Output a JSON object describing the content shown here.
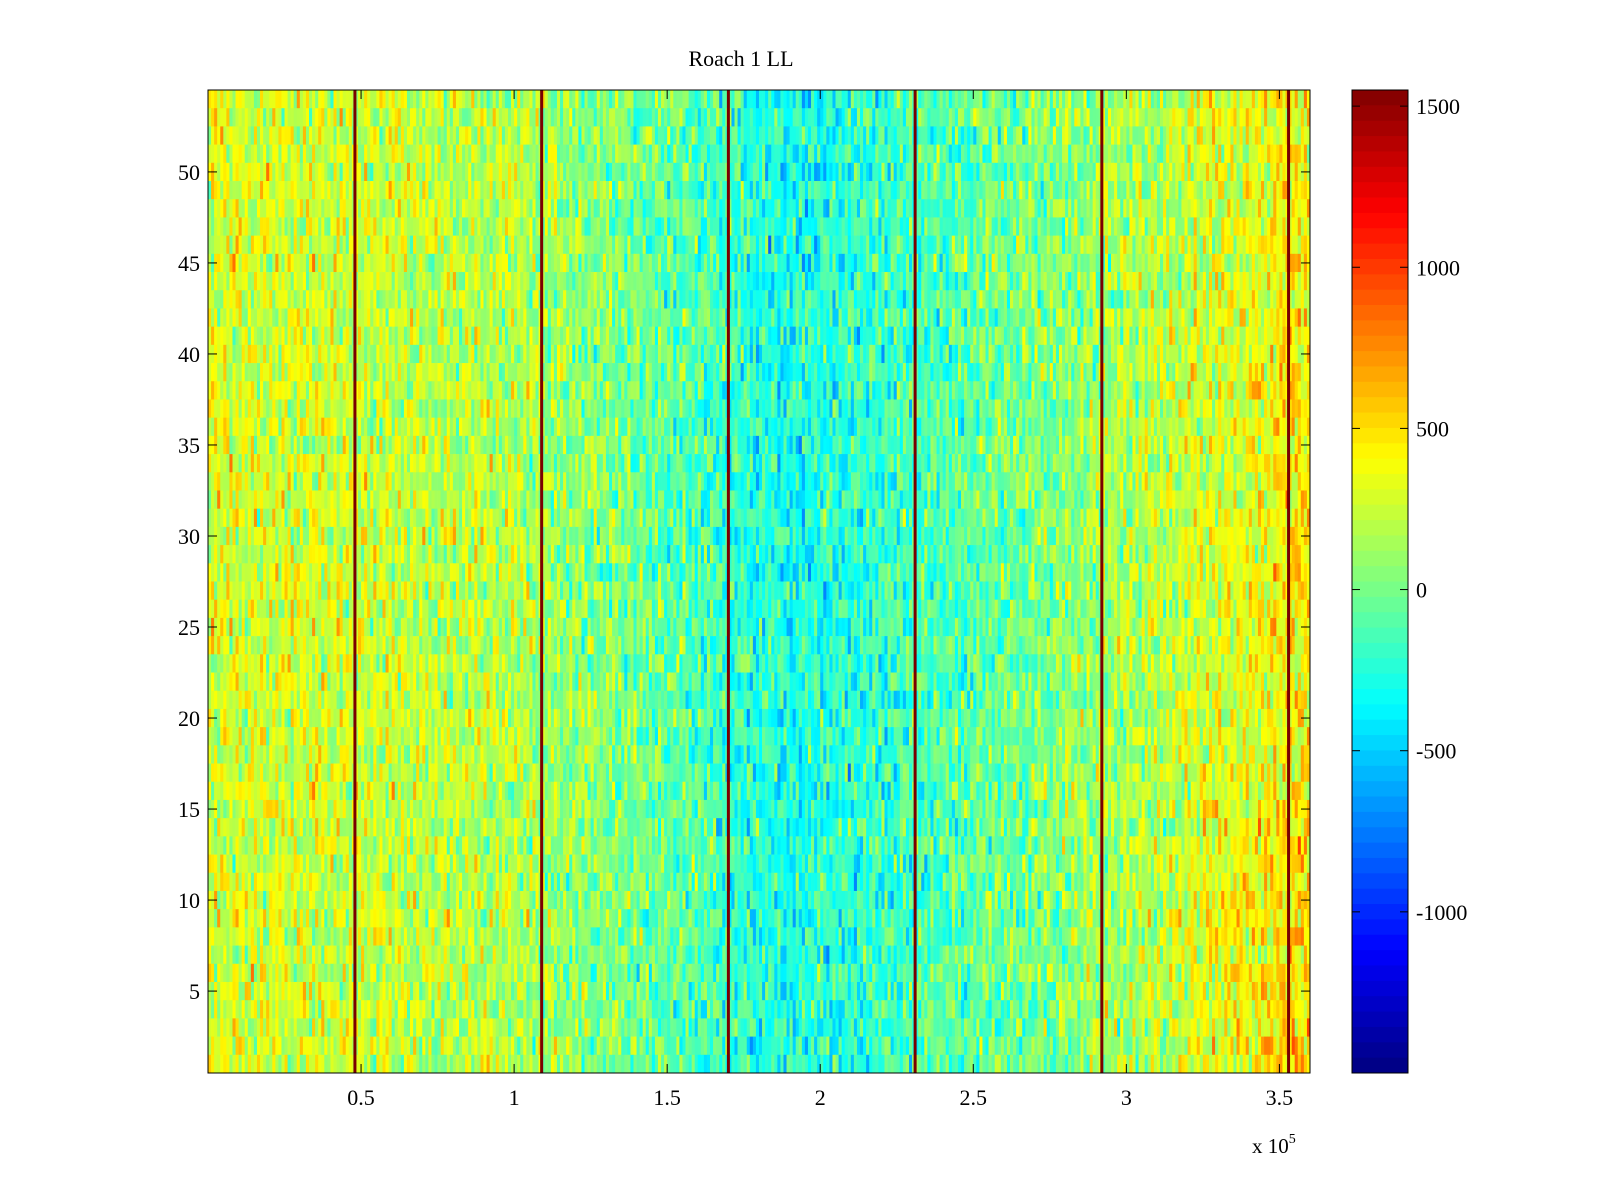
{
  "chart_data": {
    "type": "heatmap",
    "title": "Roach 1 LL",
    "xlabel": "",
    "ylabel": "",
    "x_exponent_label": {
      "base": "x 10",
      "exponent": "5"
    },
    "xlim": [
      0,
      3.6
    ],
    "ylim": [
      0.5,
      54.5
    ],
    "x_ticks": [
      0.5,
      1,
      1.5,
      2,
      2.5,
      3,
      3.5
    ],
    "x_tick_labels": [
      "0.5",
      "1",
      "1.5",
      "2",
      "2.5",
      "3",
      "3.5"
    ],
    "y_ticks": [
      5,
      10,
      15,
      20,
      25,
      30,
      35,
      40,
      45,
      50
    ],
    "y_tick_labels": [
      "5",
      "10",
      "15",
      "20",
      "25",
      "30",
      "35",
      "40",
      "45",
      "50"
    ],
    "rows": 54,
    "columns": 360,
    "x_scale_factor": 100000,
    "colormap": "jet",
    "colorbar": {
      "range": [
        -1500,
        1550
      ],
      "ticks": [
        1500,
        1000,
        500,
        0,
        -500,
        -1000
      ],
      "tick_labels": [
        "1500",
        "1000",
        "500",
        "0",
        "-500",
        "-1000"
      ],
      "position": "right"
    },
    "vertical_lines": {
      "value": 1550,
      "color": "#7a0000",
      "x": [
        0.48,
        1.09,
        1.7,
        2.31,
        2.92,
        3.53
      ]
    },
    "column_mean_profile": [
      {
        "x": 0.0,
        "value": 300
      },
      {
        "x": 0.5,
        "value": 260
      },
      {
        "x": 1.0,
        "value": 180
      },
      {
        "x": 1.5,
        "value": -60
      },
      {
        "x": 1.9,
        "value": -300
      },
      {
        "x": 2.3,
        "value": -150
      },
      {
        "x": 2.8,
        "value": 60
      },
      {
        "x": 3.2,
        "value": 250
      },
      {
        "x": 3.6,
        "value": 450
      }
    ],
    "noise_amplitude": 190,
    "grid": false
  }
}
